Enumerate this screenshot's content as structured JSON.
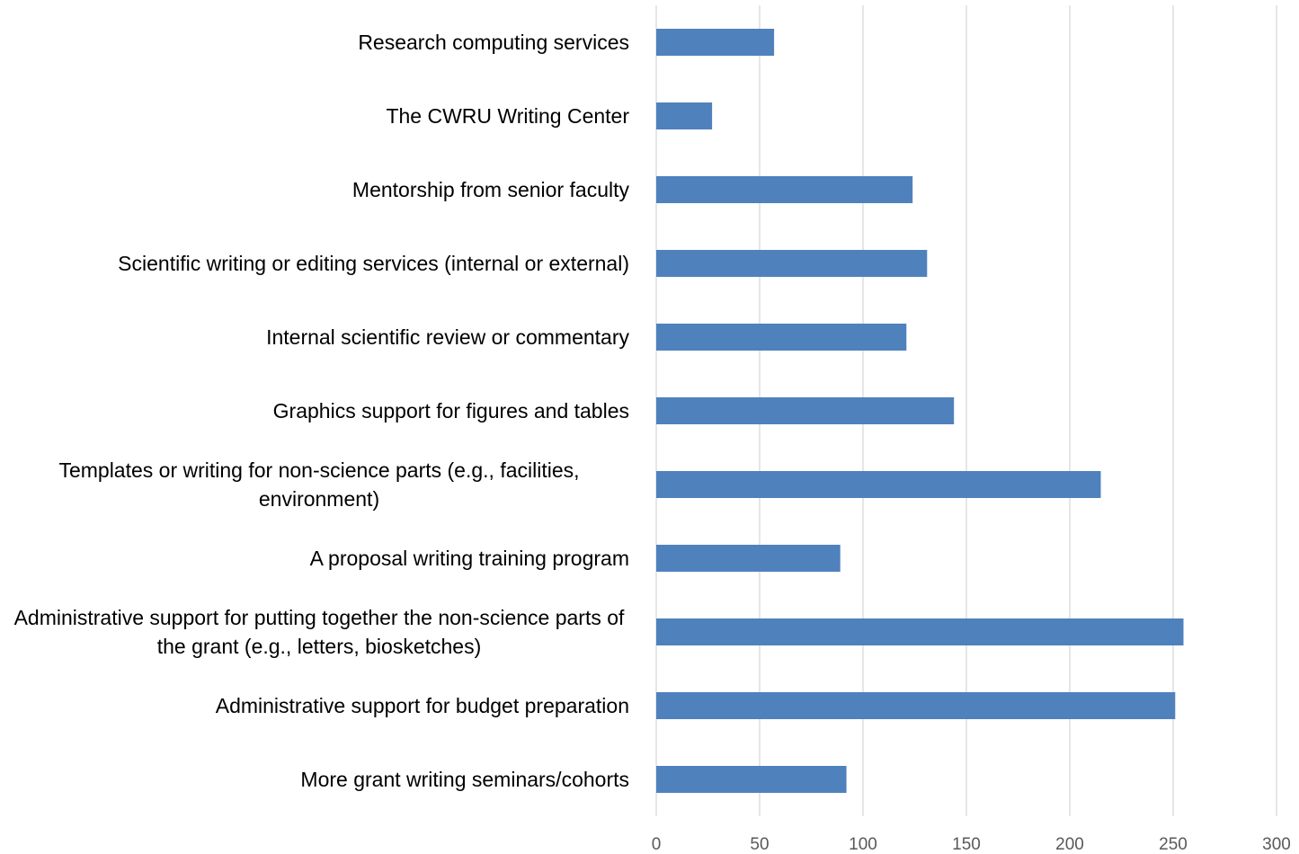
{
  "chart_data": {
    "type": "bar",
    "orientation": "horizontal",
    "categories": [
      "Research computing services",
      "The CWRU Writing Center",
      "Mentorship from senior faculty",
      "Scientific writing or editing services (internal or external)",
      "Internal scientific review or commentary",
      "Graphics support for figures and tables",
      "Templates or writing for non-science parts (e.g., facilities, environment)",
      "A proposal writing training program",
      "Administrative support for putting together the non-science parts of the grant (e.g., letters, biosketches)",
      "Administrative support for budget preparation",
      "More grant writing seminars/cohorts"
    ],
    "values": [
      57,
      27,
      124,
      131,
      121,
      144,
      215,
      89,
      255,
      251,
      92
    ],
    "color": "#4f81bd",
    "xlim": [
      0,
      300
    ],
    "xticks": [
      0,
      50,
      100,
      150,
      200,
      250,
      300
    ],
    "grid": true
  }
}
